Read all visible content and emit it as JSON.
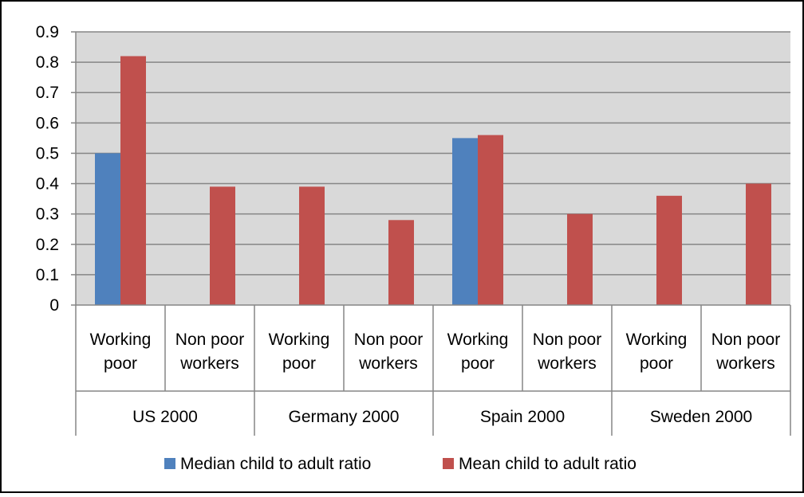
{
  "chart_data": {
    "type": "bar",
    "title": "",
    "xlabel": "",
    "ylabel": "",
    "ylim": [
      0,
      0.9
    ],
    "yticks": [
      "0",
      "0.1",
      "0.2",
      "0.3",
      "0.4",
      "0.5",
      "0.6",
      "0.7",
      "0.8",
      "0.9"
    ],
    "yticks_values": [
      0,
      0.1,
      0.2,
      0.3,
      0.4,
      0.5,
      0.6,
      0.7,
      0.8,
      0.9
    ],
    "grid": true,
    "legend_position": "bottom",
    "categories": [
      [
        "Working",
        "poor"
      ],
      [
        "Non poor",
        "workers"
      ],
      [
        "Working",
        "poor"
      ],
      [
        "Non poor",
        "workers"
      ],
      [
        "Working",
        "poor"
      ],
      [
        "Non poor",
        "workers"
      ],
      [
        "Working",
        "poor"
      ],
      [
        "Non poor",
        "workers"
      ]
    ],
    "groups": [
      "US 2000",
      "Germany 2000",
      "Spain 2000",
      "Sweden 2000"
    ],
    "series": [
      {
        "name": "Median child to adult ratio",
        "color": "#4F81BD",
        "values": [
          0.5,
          0,
          0,
          0,
          0.55,
          0,
          0,
          0
        ]
      },
      {
        "name": "Mean child to adult ratio",
        "color": "#C0504D",
        "values": [
          0.82,
          0.39,
          0.39,
          0.28,
          0.56,
          0.3,
          0.36,
          0.4
        ]
      }
    ],
    "colors": {
      "plot_background": "#D9D9D9",
      "gridline": "#868686",
      "border": "#000000"
    }
  }
}
